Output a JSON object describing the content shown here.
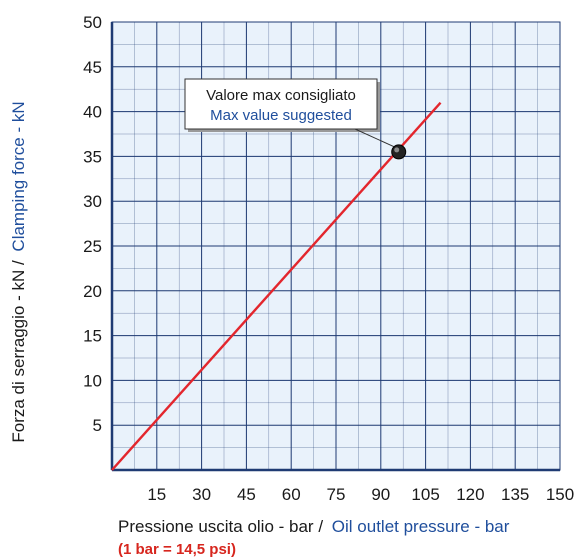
{
  "chart_data": {
    "type": "line",
    "x_ticks": [
      "15",
      "30",
      "45",
      "60",
      "75",
      "90",
      "105",
      "120",
      "135",
      "150"
    ],
    "y_ticks": [
      "5",
      "10",
      "15",
      "20",
      "25",
      "30",
      "35",
      "40",
      "45",
      "50"
    ],
    "xlim": [
      0,
      150
    ],
    "ylim": [
      0,
      50
    ],
    "x_minor_step": 7.5,
    "y_minor_step": 2.5,
    "grid": true,
    "xlabel_it": "Pressione uscita olio - bar /",
    "xlabel_en": "Oil outlet pressure - bar",
    "ylabel_it": "Forza di serraggio - kN /",
    "ylabel_en": "Clamping force - kN",
    "note": "(1 bar = 14,5 psi)",
    "series": [
      {
        "x": [
          0,
          110
        ],
        "y": [
          0,
          41
        ],
        "color": "#e3262d"
      }
    ],
    "max_point": {
      "x": 96,
      "y": 35.5
    },
    "annotation": {
      "line1": "Valore max consigliato",
      "line2": "Max value suggested"
    },
    "colors": {
      "grid": "#1f3b73",
      "plot_background": "#e9f2fb",
      "line": "#e3262d",
      "english_text": "#1f4e9c"
    }
  }
}
